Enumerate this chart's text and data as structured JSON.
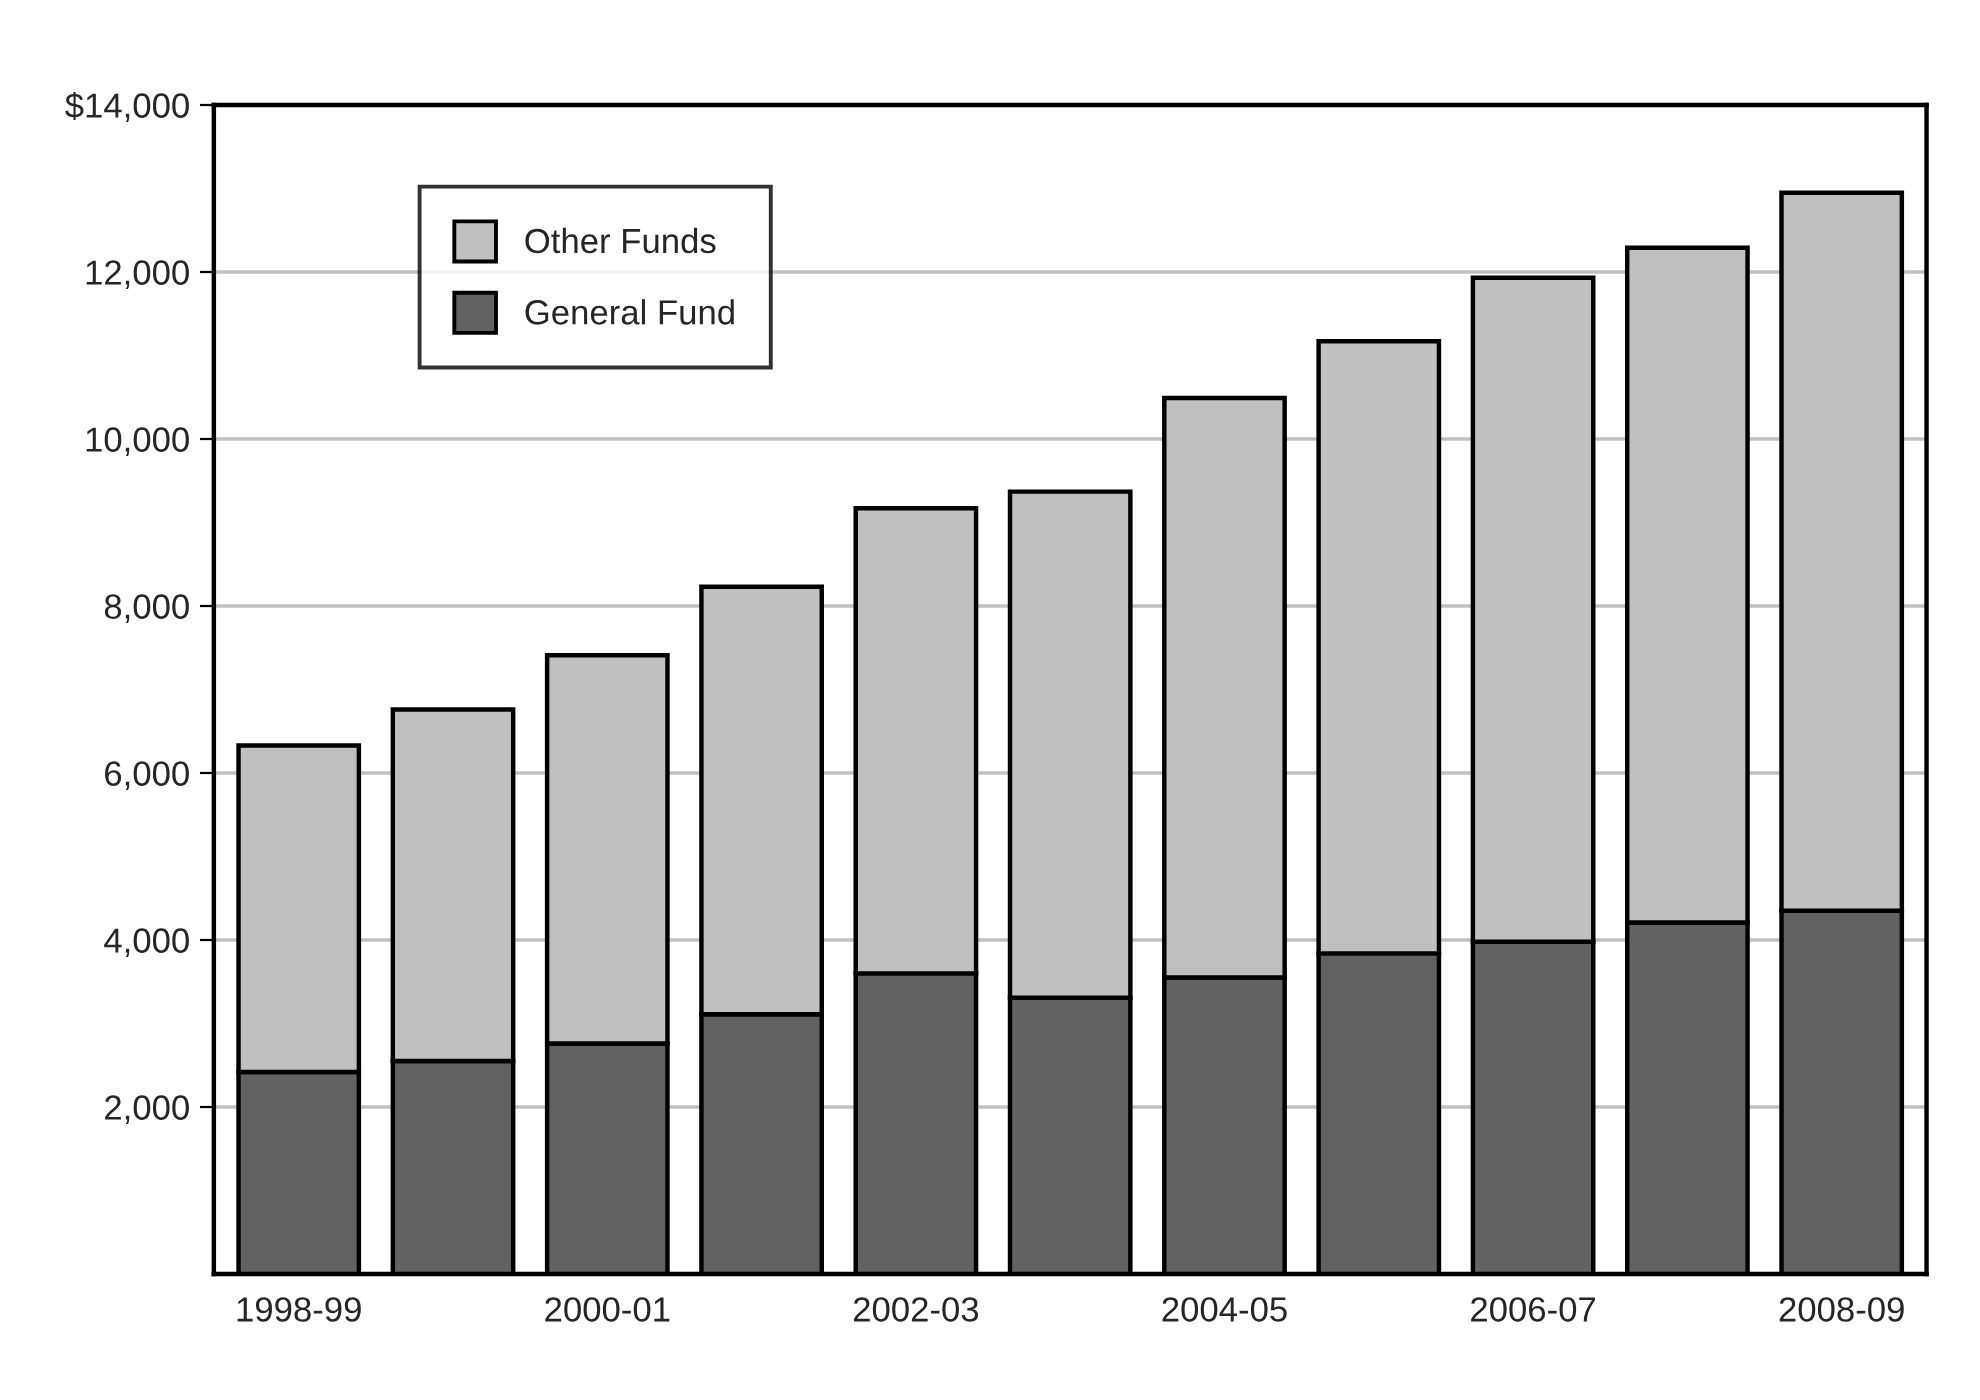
{
  "chart_data": {
    "type": "bar",
    "stacked": true,
    "categories": [
      "1998-99",
      null,
      "2000-01",
      null,
      "2002-03",
      null,
      "2004-05",
      null,
      "2006-07",
      null,
      "2008-09"
    ],
    "series": [
      {
        "name": "General Fund",
        "color": "#626262",
        "values": [
          2420,
          2550,
          2760,
          3110,
          3600,
          3310,
          3550,
          3840,
          3980,
          4210,
          4350
        ]
      },
      {
        "name": "Other Funds",
        "color": "#c0c0c0",
        "values": [
          3910,
          4210,
          4650,
          5120,
          5570,
          6060,
          6940,
          7330,
          7950,
          8080,
          8600
        ]
      }
    ],
    "ylim": [
      0,
      14000
    ],
    "yticks": [
      {
        "value": 2000,
        "label": "2,000"
      },
      {
        "value": 4000,
        "label": "4,000"
      },
      {
        "value": 6000,
        "label": "6,000"
      },
      {
        "value": 8000,
        "label": "8,000"
      },
      {
        "value": 10000,
        "label": "10,000"
      },
      {
        "value": 12000,
        "label": "12,000"
      },
      {
        "value": 14000,
        "label": "$14,000"
      }
    ],
    "grid": "y",
    "legend": "top left"
  }
}
